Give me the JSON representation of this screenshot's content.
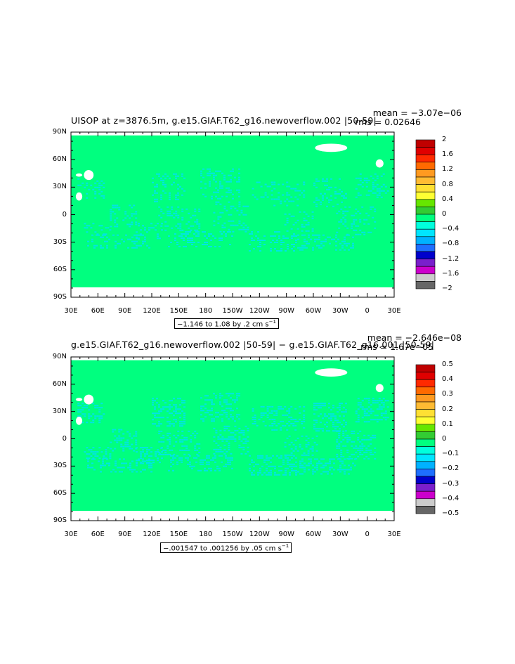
{
  "panels": [
    {
      "title": "UISOP at z=3876.5m, g.e15.GIAF.T62_g16.newoverflow.002 |50-59|",
      "mean_text": "mean = −3.07e−06",
      "rms_text": "rms = 0.02646",
      "range_text": "−1.146 to 1.08 by .2 cm s",
      "range_unit_exp": "−1",
      "colorbar_labels": [
        "2",
        "1.6",
        "1.2",
        "0.8",
        "0.4",
        "0",
        "−0.4",
        "−0.8",
        "−1.2",
        "−1.6",
        "−2"
      ]
    },
    {
      "title": "g.e15.GIAF.T62_g16.newoverflow.002 |50-59| − g.e15.GIAF.T62_g16.001 |50-59|",
      "mean_text": "mean = −2.646e−08",
      "rms_text": "rms = 1.67e−05",
      "range_text": "−.001547 to .001256 by .05 cm s",
      "range_unit_exp": "−1",
      "colorbar_labels": [
        "0.5",
        "0.4",
        "0.3",
        "0.2",
        "0.1",
        "0",
        "−0.1",
        "−0.2",
        "−0.3",
        "−0.4",
        "−0.5"
      ]
    }
  ],
  "lat_labels": [
    "90N",
    "60N",
    "30N",
    "0",
    "30S",
    "60S",
    "90S"
  ],
  "lon_labels": [
    "30E",
    "60E",
    "90E",
    "120E",
    "150E",
    "180",
    "150W",
    "120W",
    "90W",
    "60W",
    "30W",
    "0",
    "30E"
  ],
  "colors": {
    "ocean_base": "#00ff7f",
    "speckle": "#00e5e5",
    "land": "#ffffff",
    "colorbar": [
      "#c00000",
      "#e00000",
      "#ff2a00",
      "#ff6a00",
      "#ff9a20",
      "#ffbb33",
      "#ffe033",
      "#ffff33",
      "#66e600",
      "#33cc33",
      "#00ff7f",
      "#00ffdd",
      "#00e5ff",
      "#00b2ff",
      "#1e6fff",
      "#0000cc",
      "#7a1fcc",
      "#cc00cc",
      "#cccccc",
      "#666666"
    ]
  }
}
